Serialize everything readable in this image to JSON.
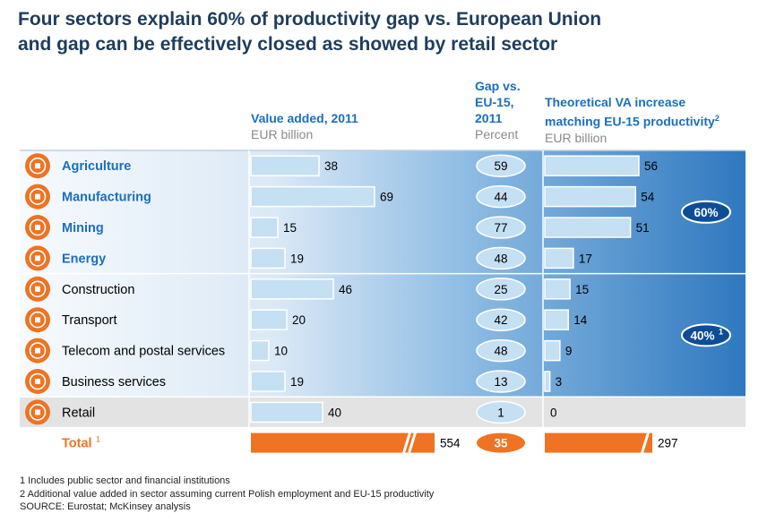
{
  "title_lines": [
    "Four sectors explain 60% of productivity gap vs. European Union",
    "and gap can be effectively closed as showed by retail sector"
  ],
  "headers": {
    "value_added": {
      "title": "Value added, 2011",
      "unit": "EUR billion"
    },
    "gap": {
      "title_lines": [
        "Gap vs.",
        "EU-15,",
        "2011"
      ],
      "unit": "Percent"
    },
    "theoretical": {
      "title_lines": [
        "Theoretical VA increase",
        "matching EU-15 productivity"
      ],
      "sup": "2",
      "unit": "EUR billion"
    }
  },
  "chart_data": {
    "type": "table",
    "sectors": [
      "Agriculture",
      "Manufacturing",
      "Mining",
      "Energy",
      "Construction",
      "Transport",
      "Telecom and postal services",
      "Business services",
      "Retail"
    ],
    "icons": [
      "cow-icon",
      "factory-icon",
      "pickaxe-icon",
      "plug-icon",
      "trowel-icon",
      "train-icon",
      "phone-icon",
      "businessman-icon",
      "basket-icon"
    ],
    "highlighted": [
      true,
      true,
      true,
      true,
      false,
      false,
      false,
      false,
      false
    ],
    "value_added_2011": [
      38,
      69,
      15,
      19,
      46,
      20,
      10,
      19,
      40
    ],
    "gap_vs_eu15_pct": [
      59,
      44,
      77,
      48,
      25,
      42,
      48,
      13,
      1
    ],
    "theoretical_va_increase": [
      56,
      54,
      51,
      17,
      15,
      14,
      9,
      3,
      0
    ],
    "total": {
      "label": "Total",
      "sup": "1",
      "value_added": 554,
      "gap": 35,
      "theoretical": 297
    },
    "group_badges": [
      {
        "text": "60%",
        "sup": ""
      },
      {
        "text": "40%",
        "sup": "1"
      }
    ]
  },
  "colors": {
    "title": "#1f3d5c",
    "accent_blue": "#1a6fc0",
    "bar_fill": "#c5dff3",
    "total_orange": "#ef7322",
    "panel_gradient_light": "#f2f7fc",
    "panel_gradient_dark": "#3d85c6",
    "retail_band": "#e3e3e3"
  },
  "footnotes": [
    "1 Includes public sector and financial institutions",
    "2 Additional value added in sector assuming current Polish employment and EU-15 productivity",
    "SOURCE: Eurostat; McKinsey analysis"
  ]
}
